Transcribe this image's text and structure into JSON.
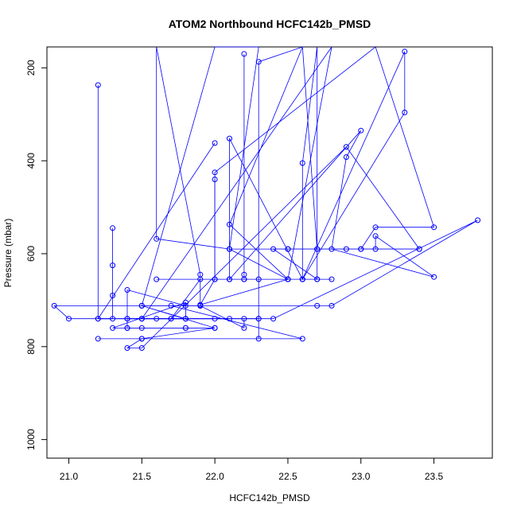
{
  "chart_data": {
    "type": "line",
    "title": "ATOM2 Northbound HCFC142b_PMSD",
    "xlabel": "HCFC142b_PMSD",
    "ylabel": "Pressure (mbar)",
    "xlim": [
      20.85,
      23.9
    ],
    "ylim": [
      1040,
      155
    ],
    "y_inverted": true,
    "x_ticks": [
      "21.0",
      "21.5",
      "22.0",
      "22.5",
      "23.0",
      "23.5"
    ],
    "y_ticks": [
      "200",
      "400",
      "600",
      "800",
      "1000"
    ],
    "grid": false,
    "legend": "none",
    "color": "#0000ff",
    "series": [
      {
        "points": [
          [
            21.2,
            237
          ],
          [
            21.2,
            740
          ],
          [
            21.8,
            740
          ],
          [
            21.8,
            705
          ],
          [
            21.3,
            760
          ],
          [
            21.4,
            760
          ],
          [
            21.5,
            760
          ],
          [
            21.8,
            760
          ],
          [
            22.0,
            760
          ],
          [
            21.5,
            783
          ],
          [
            21.4,
            803
          ],
          [
            21.5,
            803
          ],
          [
            22.9,
            370
          ],
          [
            23.4,
            590
          ],
          [
            22.9,
            590
          ],
          [
            22.7,
            590
          ],
          [
            22.5,
            590
          ],
          [
            22.1,
            590
          ],
          [
            21.6,
            568
          ],
          [
            21.6,
            155
          ],
          [
            21.6,
            155
          ]
        ]
      },
      {
        "points": [
          [
            21.3,
            545
          ],
          [
            21.3,
            625
          ],
          [
            21.3,
            690
          ],
          [
            21.3,
            740
          ],
          [
            21.0,
            740
          ],
          [
            20.9,
            712
          ],
          [
            22.7,
            712
          ],
          [
            22.8,
            712
          ],
          [
            23.8,
            528
          ],
          [
            22.4,
            740
          ],
          [
            21.7,
            740
          ],
          [
            21.5,
            740
          ],
          [
            21.4,
            740
          ],
          [
            21.4,
            678
          ],
          [
            21.8,
            712
          ],
          [
            21.9,
            712
          ],
          [
            22.2,
            760
          ],
          [
            22.2,
            740
          ],
          [
            22.3,
            740
          ],
          [
            22.3,
            783
          ],
          [
            21.5,
            783
          ],
          [
            21.2,
            783
          ],
          [
            22.6,
            783
          ],
          [
            21.7,
            712
          ],
          [
            21.5,
            712
          ],
          [
            21.9,
            712
          ],
          [
            21.9,
            645
          ],
          [
            21.6,
            155
          ]
        ]
      },
      {
        "points": [
          [
            22.0,
            440
          ],
          [
            22.0,
            655
          ],
          [
            21.6,
            655
          ],
          [
            22.8,
            655
          ],
          [
            22.7,
            655
          ],
          [
            22.6,
            655
          ],
          [
            22.5,
            655
          ],
          [
            22.3,
            655
          ],
          [
            22.2,
            655
          ],
          [
            22.2,
            645
          ],
          [
            22.2,
            170
          ],
          [
            22.2,
            655
          ],
          [
            22.1,
            655
          ],
          [
            21.9,
            655
          ],
          [
            21.7,
            740
          ],
          [
            21.6,
            740
          ],
          [
            21.5,
            740
          ],
          [
            21.8,
            740
          ],
          [
            22.0,
            740
          ],
          [
            22.1,
            740
          ],
          [
            21.8,
            740
          ],
          [
            21.5,
            712
          ],
          [
            22.0,
            760
          ],
          [
            21.8,
            760
          ],
          [
            21.4,
            760
          ],
          [
            21.4,
            740
          ],
          [
            21.5,
            740
          ],
          [
            22.8,
            155
          ],
          [
            22.5,
            655
          ],
          [
            22.1,
            537
          ],
          [
            22.6,
            155
          ]
        ]
      },
      {
        "points": [
          [
            22.0,
            362
          ],
          [
            21.2,
            740
          ],
          [
            21.5,
            740
          ],
          [
            22.3,
            740
          ],
          [
            22.3,
            187
          ],
          [
            22.6,
            155
          ],
          [
            22.6,
            155
          ],
          [
            22.7,
            590
          ],
          [
            22.5,
            590
          ],
          [
            23.0,
            590
          ],
          [
            23.4,
            590
          ],
          [
            23.1,
            590
          ],
          [
            23.1,
            562
          ],
          [
            23.5,
            650
          ],
          [
            22.8,
            590
          ],
          [
            22.9,
            392
          ],
          [
            23.0,
            335
          ],
          [
            22.1,
            655
          ],
          [
            22.1,
            352
          ],
          [
            22.6,
            655
          ],
          [
            23.3,
            165
          ],
          [
            23.3,
            296
          ],
          [
            22.6,
            655
          ],
          [
            22.6,
            405
          ],
          [
            22.7,
            155
          ],
          [
            22.7,
            655
          ],
          [
            22.4,
            590
          ],
          [
            23.0,
            590
          ],
          [
            23.1,
            543
          ],
          [
            23.5,
            543
          ],
          [
            23.1,
            155
          ],
          [
            22.0,
            425
          ],
          [
            22.0,
            655
          ],
          [
            21.9,
            710
          ],
          [
            22.5,
            655
          ],
          [
            22.1,
            590
          ],
          [
            22.3,
            155
          ],
          [
            22.0,
            155
          ],
          [
            21.5,
            712
          ],
          [
            21.9,
            712
          ]
        ]
      }
    ]
  }
}
